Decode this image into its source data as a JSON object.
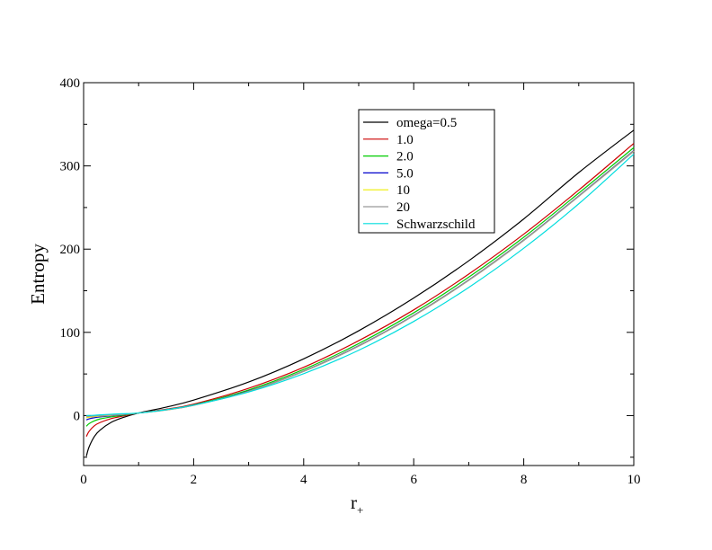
{
  "chart_data": {
    "type": "line",
    "title": "",
    "xlabel": "r",
    "xlabel_subscript": "+",
    "ylabel": "Entropy",
    "xlim": [
      0,
      10
    ],
    "ylim": [
      -60,
      400
    ],
    "xticks": [
      0,
      2,
      4,
      6,
      8,
      10
    ],
    "yticks": [
      0,
      100,
      200,
      300,
      400
    ],
    "grid": false,
    "legend_position": "top-right",
    "series": [
      {
        "name": "omega=0.5",
        "color": "#000000",
        "x": [
          0.05,
          0.1,
          0.2,
          0.3,
          0.5,
          0.7,
          1.0,
          1.5,
          2,
          3,
          4,
          5,
          6,
          7,
          8,
          9,
          10
        ],
        "y": [
          -48.8,
          -37.6,
          -24.7,
          -17.4,
          -8.2,
          -2.7,
          3.1,
          10.1,
          18.6,
          40.3,
          68.2,
          101.9,
          141.2,
          186.0,
          236.3,
          292.0,
          343.0
        ]
      },
      {
        "name": "1.0",
        "color": "#cc0000",
        "x": [
          0.05,
          0.1,
          0.2,
          0.3,
          0.5,
          0.7,
          1.0,
          1.5,
          2,
          3,
          4,
          5,
          6,
          7,
          8,
          9,
          10
        ],
        "y": [
          -25.1,
          -18.9,
          -12.0,
          -8.3,
          -3.6,
          -0.8,
          3.1,
          7.6,
          13.8,
          32.8,
          58.0,
          90.0,
          127.0,
          170.0,
          218.0,
          271.0,
          327.0
        ]
      },
      {
        "name": "2.0",
        "color": "#00cc00",
        "x": [
          0.05,
          0.1,
          0.2,
          0.3,
          0.5,
          0.7,
          1.0,
          1.5,
          2,
          3,
          4,
          5,
          6,
          7,
          8,
          9,
          10
        ],
        "y": [
          -12.8,
          -9.6,
          -6.2,
          -4.0,
          -1.6,
          0.2,
          3.1,
          7.0,
          12.8,
          30.8,
          55.5,
          86.5,
          123.5,
          166.3,
          214.3,
          267.3,
          322.0
        ]
      },
      {
        "name": "5.0",
        "color": "#0000cc",
        "x": [
          0.05,
          0.1,
          0.2,
          0.3,
          0.5,
          0.7,
          1.0,
          1.5,
          2,
          3,
          4,
          5,
          6,
          7,
          8,
          9,
          10
        ],
        "y": [
          -5.2,
          -3.9,
          -2.5,
          -1.6,
          -0.3,
          0.9,
          3.1,
          6.9,
          12.5,
          29.5,
          53.5,
          84.0,
          120.5,
          163.0,
          211.0,
          264.0,
          318.5
        ]
      },
      {
        "name": "10",
        "color": "#eeee00",
        "x": [
          0.05,
          0.1,
          0.2,
          0.3,
          0.5,
          0.7,
          1.0,
          1.5,
          2,
          3,
          4,
          5,
          6,
          7,
          8,
          9,
          10
        ],
        "y": [
          -2.6,
          -2.0,
          -1.2,
          -0.6,
          0.2,
          1.2,
          3.1,
          6.8,
          12.4,
          29.2,
          53.2,
          83.6,
          120.1,
          162.6,
          210.6,
          263.6,
          318.0
        ]
      },
      {
        "name": "20",
        "color": "#999999",
        "x": [
          0.05,
          0.1,
          0.2,
          0.3,
          0.5,
          0.7,
          1.0,
          1.5,
          2,
          3,
          4,
          5,
          6,
          7,
          8,
          9,
          10
        ],
        "y": [
          -1.3,
          -1.0,
          -0.5,
          -0.1,
          0.6,
          1.4,
          3.1,
          6.7,
          12.3,
          29.0,
          53.0,
          83.4,
          119.9,
          162.4,
          210.4,
          263.4,
          317.5
        ]
      },
      {
        "name": "Schwarzschild",
        "color": "#00dddd",
        "x": [
          0.05,
          0.1,
          0.2,
          0.3,
          0.5,
          0.7,
          1.0,
          1.5,
          2,
          3,
          4,
          5,
          6,
          7,
          8,
          9,
          10
        ],
        "y": [
          0.0,
          0.1,
          0.4,
          0.9,
          1.6,
          2.2,
          3.1,
          7.1,
          12.6,
          28.3,
          50.3,
          78.5,
          113.1,
          154.0,
          201.1,
          254.5,
          314.2
        ]
      }
    ]
  }
}
